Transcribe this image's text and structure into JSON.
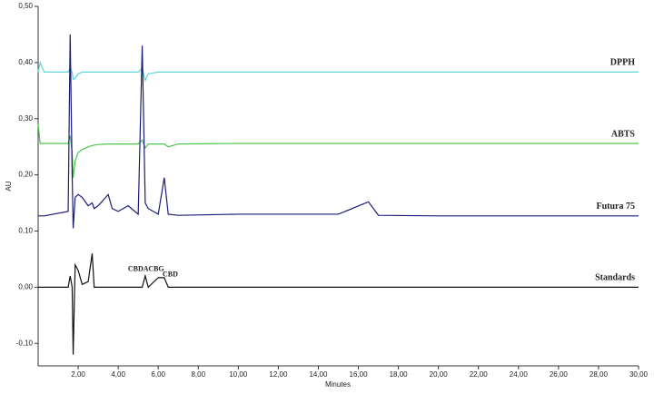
{
  "chart_data": {
    "type": "line",
    "x_label": "Minutes",
    "y_label": "AU",
    "xlim": [
      0,
      30
    ],
    "ylim": [
      -0.14,
      0.5
    ],
    "xticks": [
      {
        "value": 2,
        "label": "2,00"
      },
      {
        "value": 4,
        "label": "4,00"
      },
      {
        "value": 6,
        "label": "6,00"
      },
      {
        "value": 8,
        "label": "8,00"
      },
      {
        "value": 10,
        "label": "10,00"
      },
      {
        "value": 12,
        "label": "12,00"
      },
      {
        "value": 14,
        "label": "14,00"
      },
      {
        "value": 16,
        "label": "16,00"
      },
      {
        "value": 18,
        "label": "18,00"
      },
      {
        "value": 20,
        "label": "20,00"
      },
      {
        "value": 22,
        "label": "22,00"
      },
      {
        "value": 24,
        "label": "24,00"
      },
      {
        "value": 26,
        "label": "26,00"
      },
      {
        "value": 28,
        "label": "28,00"
      },
      {
        "value": 30,
        "label": "30,00"
      }
    ],
    "yticks": [
      {
        "value": -0.1,
        "label": "-0,10"
      },
      {
        "value": 0,
        "label": "0,00"
      },
      {
        "value": 0.1,
        "label": "0,10"
      },
      {
        "value": 0.2,
        "label": "0,20"
      },
      {
        "value": 0.3,
        "label": "0,30"
      },
      {
        "value": 0.4,
        "label": "0,40"
      },
      {
        "value": 0.5,
        "label": "0,50"
      }
    ],
    "x": [
      0,
      0.1,
      0.3,
      1.5,
      1.6,
      1.7,
      1.75,
      1.85,
      2.0,
      2.2,
      2.5,
      2.7,
      2.8,
      3.0,
      3.5,
      3.7,
      4.0,
      4.5,
      5.0,
      5.2,
      5.35,
      5.5,
      6.0,
      6.3,
      6.5,
      7.0,
      10,
      15,
      16.5,
      17,
      20,
      30
    ],
    "series": [
      {
        "name": "DPPH",
        "color": "#5fd6d6",
        "values": [
          0.383,
          0.4,
          0.383,
          0.383,
          0.39,
          0.383,
          0.37,
          0.372,
          0.38,
          0.383,
          0.383,
          0.383,
          0.383,
          0.383,
          0.383,
          0.383,
          0.383,
          0.383,
          0.383,
          0.39,
          0.368,
          0.38,
          0.383,
          0.383,
          0.383,
          0.383,
          0.383,
          0.383,
          0.383,
          0.383,
          0.383,
          0.383
        ]
      },
      {
        "name": "ABTS",
        "color": "#4cc44c",
        "values": [
          0.29,
          0.256,
          0.256,
          0.256,
          0.27,
          0.24,
          0.195,
          0.225,
          0.24,
          0.245,
          0.25,
          0.252,
          0.253,
          0.254,
          0.255,
          0.255,
          0.255,
          0.255,
          0.255,
          0.262,
          0.248,
          0.255,
          0.255,
          0.255,
          0.25,
          0.255,
          0.256,
          0.256,
          0.256,
          0.256,
          0.256,
          0.256
        ]
      },
      {
        "name": "Futura 75",
        "color": "#1c1c78",
        "values": [
          0.127,
          0.127,
          0.127,
          0.135,
          0.45,
          0.2,
          0.105,
          0.16,
          0.165,
          0.16,
          0.145,
          0.15,
          0.14,
          0.145,
          0.165,
          0.14,
          0.135,
          0.145,
          0.13,
          0.43,
          0.15,
          0.14,
          0.13,
          0.195,
          0.13,
          0.128,
          0.13,
          0.13,
          0.152,
          0.128,
          0.127,
          0.127
        ]
      },
      {
        "name": "Standards",
        "color": "#111111",
        "values": [
          0,
          0,
          0,
          0,
          0.02,
          0,
          -0.12,
          0.04,
          0.03,
          0.005,
          0.01,
          0.06,
          0,
          0,
          0,
          0,
          0,
          0,
          0,
          0,
          0.02,
          0,
          0.017,
          0.017,
          0,
          0,
          0,
          0,
          0,
          0,
          0,
          0
        ]
      }
    ],
    "annotations": [
      {
        "text": "CBDA",
        "x": 5.0,
        "y": 0.032
      },
      {
        "text": "CBG",
        "x": 5.9,
        "y": 0.032
      },
      {
        "text": "CBD",
        "x": 6.6,
        "y": 0.022
      }
    ]
  }
}
